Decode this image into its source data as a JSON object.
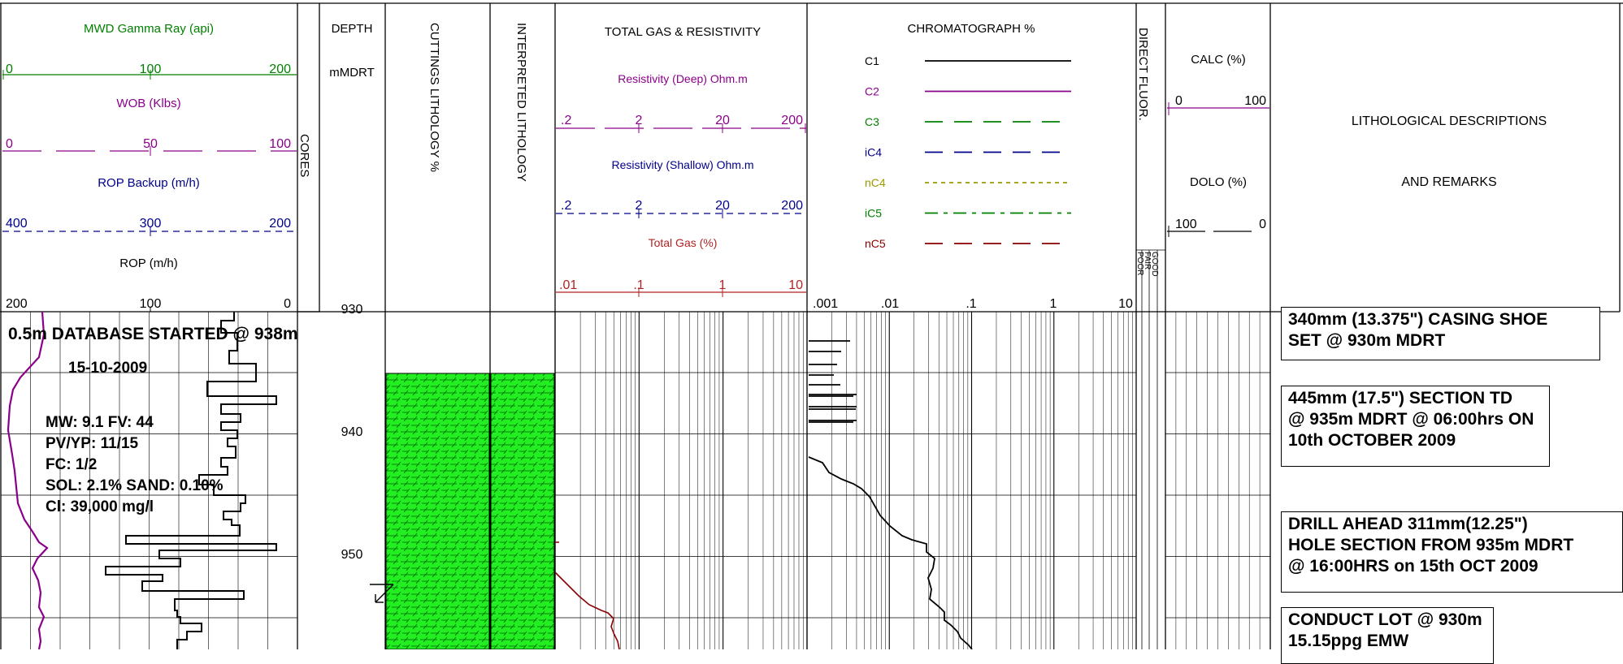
{
  "headers": {
    "gamma": "MWD Gamma Ray (api)",
    "gamma_scale": [
      "0",
      "100",
      "200"
    ],
    "wob": "WOB (Klbs)",
    "wob_scale": [
      "0",
      "50",
      "100"
    ],
    "ropb": "ROP Backup (m/h)",
    "ropb_scale": [
      "400",
      "300",
      "200"
    ],
    "rop": "ROP (m/h)",
    "rop_scale": [
      "200",
      "100",
      "0"
    ],
    "cores": "CORES",
    "depth": "DEPTH",
    "depth_unit": "mMDRT",
    "cuttings": "CUTTINGS LITHOLOGY %",
    "interp": "INTERPRETED LITHOLOGY",
    "totgas": "TOTAL GAS & RESISTIVITY",
    "resd": "Resistivity (Deep) Ohm.m",
    "resd_scale": [
      ".2",
      "2",
      "20",
      "200"
    ],
    "ress": "Resistivity (Shallow) Ohm.m",
    "ress_scale": [
      ".2",
      "2",
      "20",
      "200"
    ],
    "tg": "Total Gas (%)",
    "tg_scale": [
      ".01",
      ".1",
      "1",
      "10"
    ],
    "chromat": "CHROMATOGRAPH %",
    "chromat_scale": [
      ".001",
      ".01",
      ".1",
      "1",
      "10"
    ],
    "direct": "DIRECT FLUOR.",
    "fluor_grades": [
      "POOR",
      "FAIR",
      "GOOD"
    ],
    "calc": "CALC (%)",
    "calc_scale": [
      "0",
      "100"
    ],
    "dolo": "DOLO (%)",
    "dolo_scale": [
      "100",
      "0"
    ],
    "litho": "LITHOLOGICAL DESCRIPTIONS",
    "remarks": "AND REMARKS"
  },
  "gases": [
    {
      "name": "C1",
      "color": "#000000",
      "dash": ""
    },
    {
      "name": "C2",
      "color": "#8b008b",
      "dash": ""
    },
    {
      "name": "C3",
      "color": "#008000",
      "dash": "22,14"
    },
    {
      "name": "iC4",
      "color": "#00008b",
      "dash": "22,14"
    },
    {
      "name": "nC4",
      "color": "#9a9a00",
      "dash": "5,5"
    },
    {
      "name": "iC5",
      "color": "#008000",
      "dash": "16,7,5,7"
    },
    {
      "name": "nC5",
      "color": "#8b0000",
      "dash": "22,14"
    }
  ],
  "colors": {
    "gamma": "#008000",
    "wob": "#8b008b",
    "ropb": "#00008b",
    "tg": "#b22222",
    "litho_fill": "#22ee22",
    "litho_pattern": "#006400"
  },
  "depth_labels": [
    "930",
    "940",
    "950"
  ],
  "notes": {
    "db": "0.5m DATABASE STARTED @ 938m",
    "date": "15-10-2009",
    "mw": "MW: 9.1   FV: 44",
    "pv": "PV/YP: 11/15",
    "fc": "FC: 1/2",
    "sol": "SOL: 2.1% SAND: 0.10%",
    "cl": "Cl: 39,000 mg/l"
  },
  "remarks": [
    "340mm (13.375\") CASING SHOE\nSET @ 930m MDRT",
    "445mm (17.5\") SECTION TD\n@ 935m MDRT @ 06:00hrs ON\n10th OCTOBER 2009",
    "DRILL AHEAD 311mm(12.25\")\nHOLE SECTION FROM 935m MDRT\n@ 16:00HRS on 15th OCT 2009",
    "CONDUCT LOT @ 930m\n15.15ppg EMW"
  ]
}
